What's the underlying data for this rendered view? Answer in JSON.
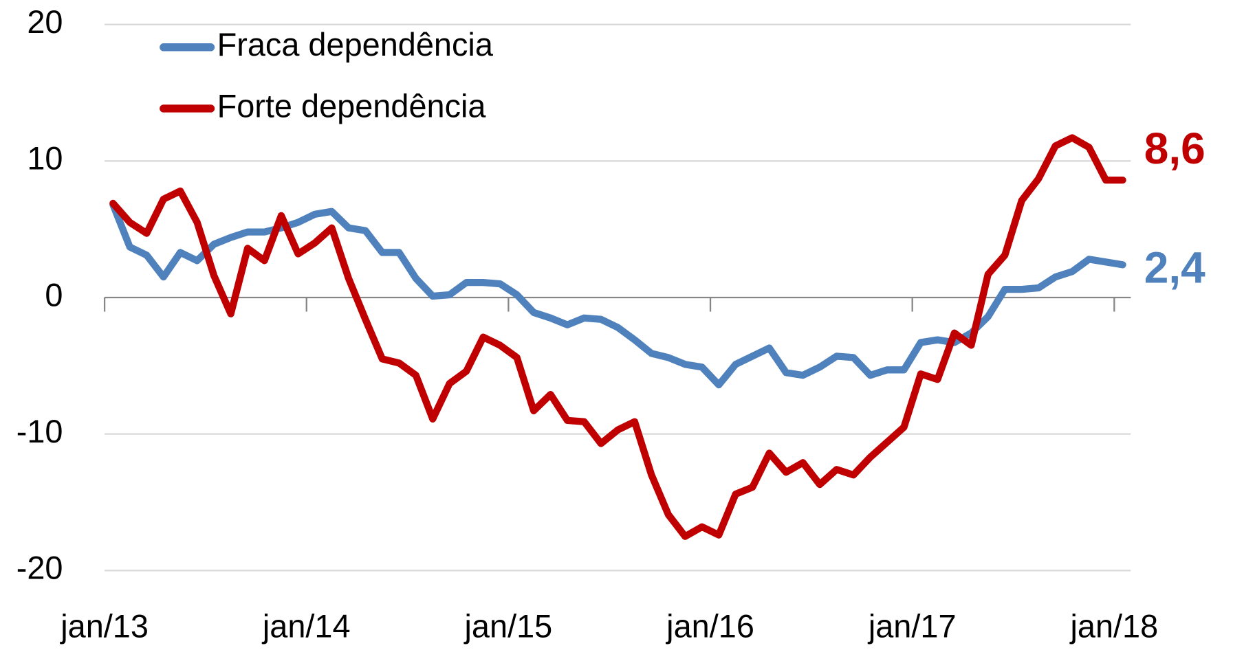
{
  "chart_data": {
    "type": "line",
    "categories": [
      "jan/13",
      null,
      null,
      null,
      null,
      null,
      null,
      null,
      null,
      null,
      null,
      null,
      "jan/14",
      null,
      null,
      null,
      null,
      null,
      null,
      null,
      null,
      null,
      null,
      null,
      "jan/15",
      null,
      null,
      null,
      null,
      null,
      null,
      null,
      null,
      null,
      null,
      null,
      "jan/16",
      null,
      null,
      null,
      null,
      null,
      null,
      null,
      null,
      null,
      null,
      null,
      "jan/17",
      null,
      null,
      null,
      null,
      null,
      null,
      null,
      null,
      null,
      null,
      null,
      "jan/18"
    ],
    "series": [
      {
        "name": "Fraca dependência",
        "color": "#4f81bd",
        "values": [
          6.8,
          3.7,
          3.1,
          1.5,
          3.3,
          2.7,
          3.9,
          4.4,
          4.8,
          4.8,
          5.1,
          5.5,
          6.1,
          6.3,
          5.1,
          4.9,
          3.3,
          3.3,
          1.4,
          0.1,
          0.2,
          1.1,
          1.1,
          1.0,
          0.2,
          -1.1,
          -1.5,
          -2.0,
          -1.5,
          -1.6,
          -2.2,
          -3.1,
          -4.1,
          -4.4,
          -4.9,
          -5.1,
          -6.4,
          -4.9,
          -4.3,
          -3.7,
          -5.5,
          -5.7,
          -5.1,
          -4.3,
          -4.4,
          -5.7,
          -5.3,
          -5.3,
          -3.3,
          -3.1,
          -3.3,
          -2.6,
          -1.4,
          0.6,
          0.6,
          0.7,
          1.5,
          1.9,
          2.8,
          2.6,
          2.4
        ],
        "value_labels": [
          null,
          null,
          null,
          null,
          null,
          null,
          null,
          null,
          null,
          null,
          null,
          null,
          null,
          null,
          null,
          null,
          null,
          null,
          null,
          null,
          null,
          null,
          null,
          null,
          null,
          null,
          null,
          null,
          null,
          null,
          null,
          null,
          null,
          null,
          null,
          null,
          null,
          null,
          null,
          null,
          null,
          null,
          null,
          null,
          null,
          null,
          null,
          null,
          null,
          null,
          null,
          null,
          null,
          null,
          null,
          null,
          null,
          null,
          null,
          null,
          "2,4"
        ]
      },
      {
        "name": "Forte dependência",
        "color": "#c00000",
        "values": [
          6.9,
          5.5,
          4.7,
          7.2,
          7.8,
          5.5,
          1.6,
          -1.2,
          3.6,
          2.7,
          6.0,
          3.2,
          4.0,
          5.1,
          1.4,
          -1.6,
          -4.5,
          -4.8,
          -5.7,
          -8.9,
          -6.3,
          -5.4,
          -2.9,
          -3.5,
          -4.4,
          -8.3,
          -7.1,
          -9.0,
          -9.1,
          -10.7,
          -9.7,
          -9.1,
          -13.0,
          -15.9,
          -17.5,
          -16.8,
          -17.4,
          -14.4,
          -13.9,
          -11.4,
          -12.8,
          -12.1,
          -13.7,
          -12.6,
          -13.0,
          -11.7,
          -10.6,
          -9.5,
          -5.6,
          -6.0,
          -2.6,
          -3.5,
          1.7,
          3.1,
          7.1,
          8.7,
          11.1,
          11.7,
          11.0,
          8.6,
          8.6
        ],
        "value_labels": [
          null,
          null,
          null,
          null,
          null,
          null,
          null,
          null,
          null,
          null,
          null,
          null,
          null,
          null,
          null,
          null,
          null,
          null,
          null,
          null,
          null,
          null,
          null,
          null,
          null,
          null,
          null,
          null,
          null,
          null,
          null,
          null,
          null,
          null,
          null,
          null,
          null,
          null,
          null,
          null,
          null,
          null,
          null,
          null,
          null,
          null,
          null,
          null,
          null,
          null,
          null,
          null,
          null,
          null,
          null,
          null,
          null,
          null,
          null,
          null,
          "8,6"
        ]
      }
    ],
    "ylim": [
      -20,
      20
    ],
    "yticks": [
      -20,
      -10,
      0,
      10,
      20
    ],
    "grid": true,
    "legend": "upper left"
  }
}
